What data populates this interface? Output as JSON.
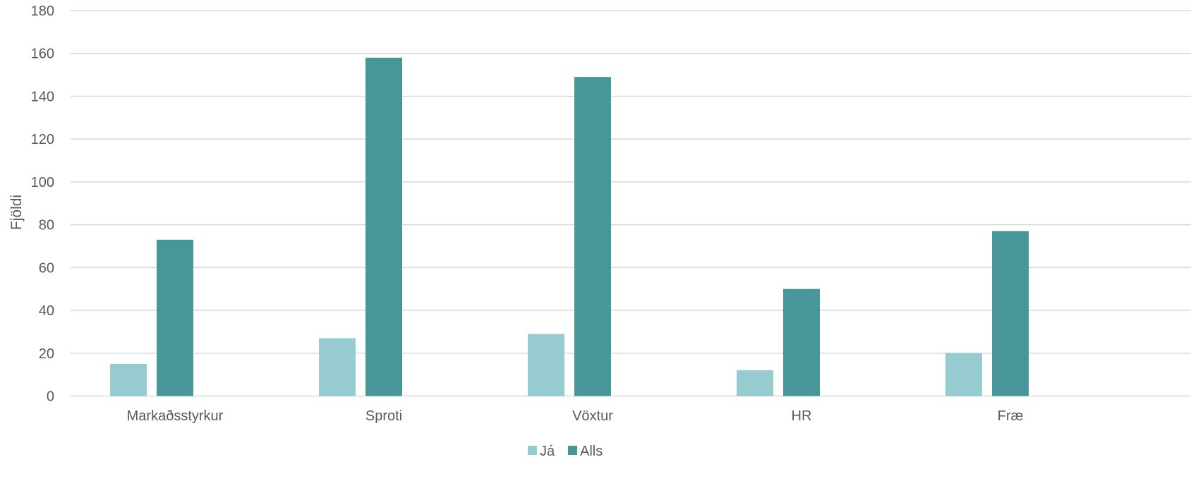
{
  "chart_data": {
    "type": "bar",
    "title": "",
    "xlabel": "",
    "ylabel": "Fjöldi",
    "categories": [
      "Markaðsstyrkur",
      "Sproti",
      "Vöxtur",
      "HR",
      "Fræ"
    ],
    "series": [
      {
        "name": "Já",
        "color": "#96cccf",
        "values": [
          15,
          27,
          29,
          12,
          20
        ]
      },
      {
        "name": "Alls",
        "color": "#46969a",
        "values": [
          73,
          158,
          149,
          50,
          77
        ]
      }
    ],
    "ylim": [
      0,
      180
    ],
    "yticks": [
      0,
      20,
      40,
      60,
      80,
      100,
      120,
      140,
      160,
      180
    ],
    "grid": true,
    "legend_position": "bottom"
  }
}
